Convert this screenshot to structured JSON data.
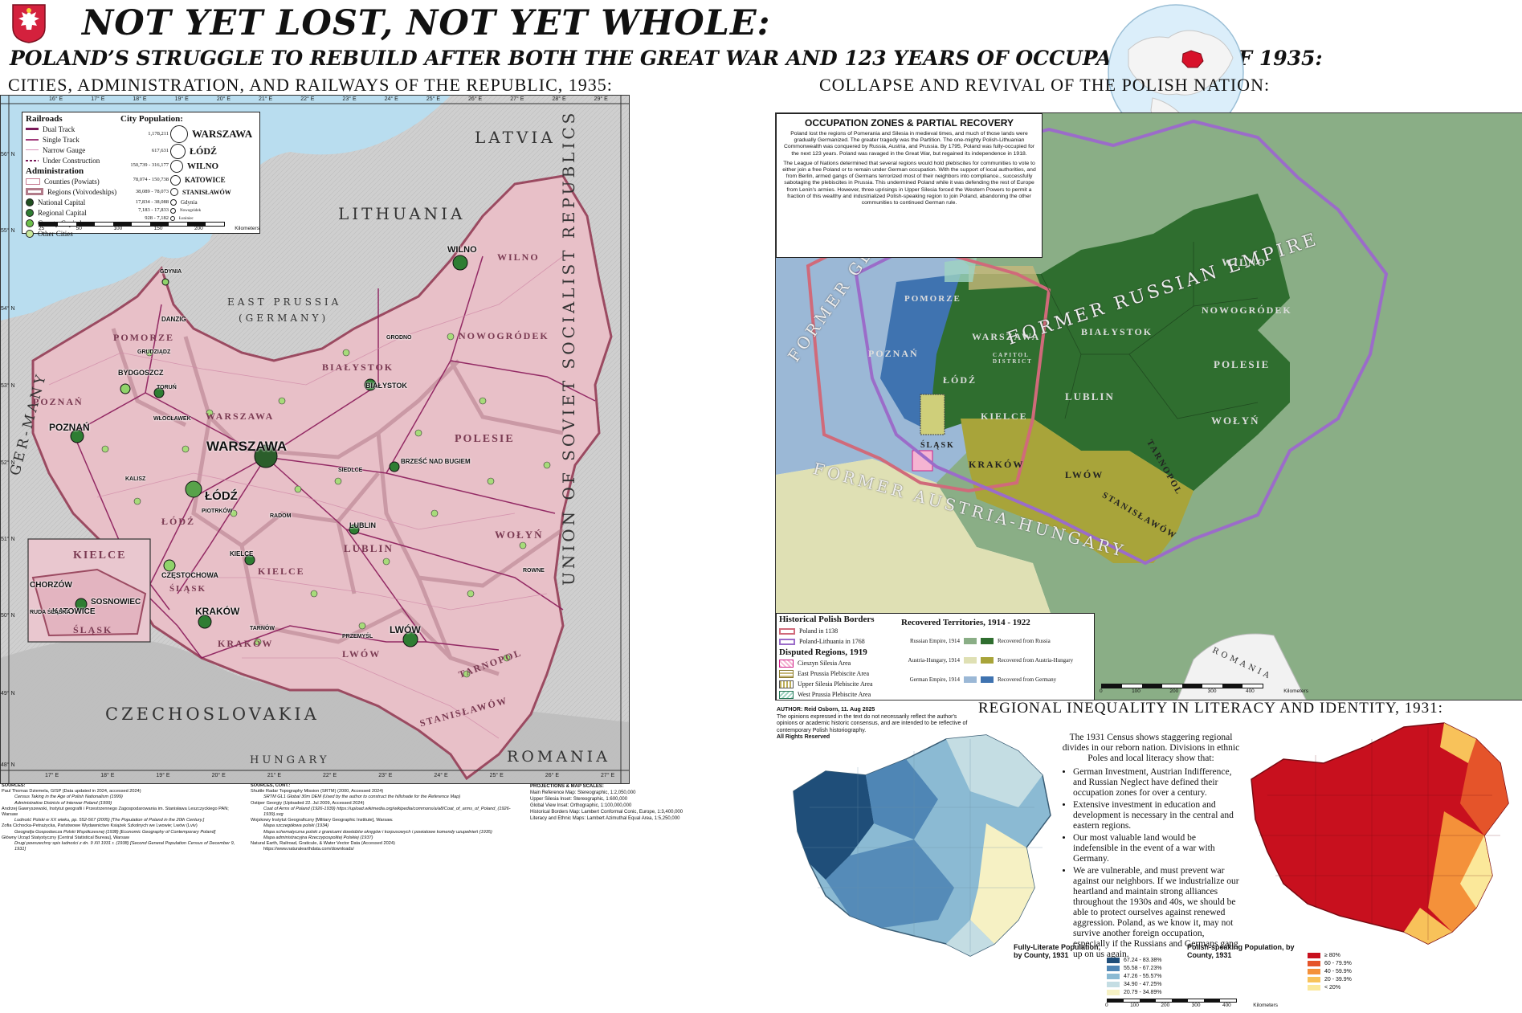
{
  "header": {
    "title": "NOT YET LOST, NOT YET WHOLE:",
    "subtitle": "POLAND’S STRUGGLE TO REBUILD AFTER BOTH THE GREAT WAR AND 123 YEARS OF OCCUPATION, AS OF 1935:",
    "emblem_icon": "white-eagle-emblem"
  },
  "colors": {
    "poland_fill": "#e8c0c8",
    "sea": "#b8dcef",
    "land_grey": "#c8c8c8",
    "railway": "#8a1a5a",
    "germany_blue": "#3f73b0",
    "russia_green": "#2f6e2f",
    "austria_olive": "#a8a43a",
    "pol_lith_purple": "#9b6cc9",
    "border_1138": "#d06a7a"
  },
  "left_map": {
    "title": "CITIES, ADMINISTRATION, AND RAILWAYS OF THE REPUBLIC, 1935:",
    "lon_ticks": [
      "16° E",
      "17° E",
      "18° E",
      "19° E",
      "20° E",
      "21° E",
      "22° E",
      "23° E",
      "24° E",
      "25° E",
      "26° E",
      "27° E",
      "28° E",
      "29° E"
    ],
    "lon_ticks_bottom": [
      "17° E",
      "18° E",
      "19° E",
      "20° E",
      "21° E",
      "22° E",
      "23° E",
      "24° E",
      "25° E",
      "26° E",
      "27° E"
    ],
    "lat_ticks": [
      "56° N",
      "55° N",
      "54° N",
      "53° N",
      "52° N",
      "51° N",
      "50° N",
      "49° N",
      "48° N"
    ],
    "countries": [
      "LATVIA",
      "LITHUANIA",
      "EAST PRUSSIA",
      "(GERMANY)",
      "CZECHOSLOVAKIA",
      "HUNGARY",
      "ROMANIA",
      "UNION OF SOVIET SOCIALIST REPUBLICS",
      "GER-MANY"
    ],
    "regions": [
      "POMORZE",
      "POZNAŃ",
      "WARSZAWA",
      "BIAŁYSTOK",
      "NOWOGRÓDEK",
      "WILNO",
      "POLESIE",
      "ŁÓDŹ",
      "KIELCE",
      "LUBLIN",
      "WOŁYŃ",
      "KRAKÓW",
      "LWÓW",
      "TARNOPOL",
      "STANISŁAWÓW",
      "ŚLĄSK"
    ],
    "cities": [
      "WARSZAWA",
      "ŁÓDŹ",
      "WILNO",
      "LWÓW",
      "KRAKÓW",
      "POZNAŃ",
      "KATOWICE",
      "BYDGOSZCZ",
      "BIAŁYSTOK",
      "BRZEŚĆ NAD BUGIEM",
      "LUBLIN",
      "KIELCE",
      "CZĘSTOCHOWA",
      "RADOM",
      "GDYNIA",
      "DANZIG",
      "TORUŃ",
      "GRUDZIĄDZ",
      "PIOTRKÓW",
      "KALISZ",
      "SOSNOWIEC",
      "CHORZÓW",
      "RUDA ŚLĄSKA",
      "GRODNO",
      "ROWNE",
      "PRZEMYŚL",
      "TARNÓW",
      "WŁOCŁAWEK",
      "SIEDLCE"
    ],
    "inset_labels": [
      "KIELCE",
      "CHORZÓW",
      "SOSNOWIEC",
      "KATOWICE",
      "RUDA ŚLĄSKA",
      "ŚLĄSK"
    ],
    "legend": {
      "railroads_title": "Railroads",
      "railroads": [
        "Dual Track",
        "Single Track",
        "Narrow Gauge",
        "Under Construction"
      ],
      "admin_title": "Administration",
      "admin": [
        "Counties (Powiats)",
        "Regions (Voivodeships)",
        "National Capital",
        "Regional Capital",
        "County Capital",
        "Other Cities"
      ],
      "pop_title": "City Population:",
      "pop_ranges": [
        "1,178,211",
        "617,631",
        "150,739 - 316,177",
        "78,074 - 150,738",
        "38,089 - 78,073",
        "17,834 - 38,088",
        "7,183 - 17,833",
        "928 - 7,182"
      ],
      "pop_cities": [
        "WARSZAWA",
        "ŁÓDŹ",
        "WILNO",
        "KATOWICE",
        "STANISŁAWÓW",
        "Gdynia",
        "Nowogródek",
        "Łuniniec"
      ],
      "scale": [
        "25",
        "50",
        "100",
        "150",
        "200"
      ],
      "scale_unit": "Kilometers"
    }
  },
  "right_map": {
    "title": "COLLAPSE AND REVIVAL OF THE POLISH NATION:",
    "box_title": "OCCUPATION ZONES & PARTIAL RECOVERY",
    "box_para1": "Poland lost the regions of Pomerania and Silesia in medieval times, and much of those lands were gradually Germanized. The greater tragedy was the Partition. The one-mighty Polish-Lithuanian Commonwealth was conquered by Russia, Austria, and Prussia. By 1795, Poland was fully-occupied for the next 123 years. Poland was ravaged in the Great War, but regained its independence in 1918.",
    "box_para2": "The League of Nations determined that several regions would hold plebiscites for communities to vote to either join a free Poland or to remain under German occupation. With the support of local authorities, and from Berlin, armed gangs of Germans terrorized most of their neighbors into compliance., successfully sabotaging the plebiscites in Prussia. This undermined Poland while it was defending the rest of Europe from Lenin's armies. However, three uprisings in Upper Silesia forced the Western Powers to permit a fraction of this wealthy and industrialized Polish-speaking region to join Poland, abandoning the other communities to continued German rule.",
    "empire_labels": [
      "FORMER GERMAN EMPIRE",
      "FORMER RUSSIAN EMPIRE",
      "FORMER AUSTRIA-HUNGARY",
      "ROMANIA"
    ],
    "regions": [
      "WILNO",
      "NOWOGRÓDEK",
      "BIAŁYSTOK",
      "POMORZE",
      "POZNAŃ",
      "WARSZAWA",
      "CAPITOL DISTRICT",
      "ŁÓDŹ",
      "POLESIE",
      "LUBLIN",
      "KIELCE",
      "WOŁYŃ",
      "ŚLĄSK",
      "KRAKÓW",
      "LWÓW",
      "TARNOPOL",
      "STANISŁAWÓW"
    ],
    "legend": {
      "borders_title": "Historical Polish Borders",
      "borders": [
        "Poland in 1138",
        "Poland-Lithuania in 1768"
      ],
      "disputed_title": "Disputed Regions, 1919",
      "disputed": [
        "Cieszyn Silesia Area",
        "East Prussia Plebiscite Area",
        "Upper Silesia Plebiscite Area",
        "West Prussia Plebiscite Area"
      ],
      "recovered_title": "Recovered Territories, 1914 - 1922",
      "recovered": [
        {
          "source": "Russian Empire, 1914",
          "label": "Recovered from Russia"
        },
        {
          "source": "Austria-Hungary, 1914",
          "label": "Recovered from Austria-Hungary"
        },
        {
          "source": "German Empire, 1914",
          "label": "Recovered from Germany"
        }
      ],
      "scale": [
        "0",
        "100",
        "200",
        "300",
        "400"
      ],
      "scale_unit": "Kilometers"
    }
  },
  "bottom": {
    "title": "REGIONAL INEQUALITY IN LITERACY AND IDENTITY, 1931:",
    "author": "AUTHOR: Reid Osborn, 11. Aug 2025",
    "disclaimer": "The opinions expressed in the text do not necessarily reflect the author's opinions or academic historic consensus, and are intended to be reflective of contemporary Polish historiography.",
    "rights": "All Rights Reserved",
    "intro": "The 1931 Census shows staggering regional divides in our reborn nation. Divisions in ethnic Poles and local literacy show that:",
    "bullets": [
      "German Investment, Austrian Indifference, and Russian Neglect have defined their occupation zones for over a century.",
      "Extensive investment in education and development is necessary in the central and eastern regions.",
      "Our most valuable land would be indefensible in the event of a war with Germany.",
      "We are vulnerable, and must prevent war against our neighbors. If we industrialize our heartland and maintain strong alliances throughout the 1930s and 40s, we should be able to protect ourselves against renewed aggression. Poland, as we know it, may not survive another foreign occupation, especially if the Russians and Germans gang up on us again."
    ],
    "literacy_legend": {
      "title": "Fully-Literate Population, by County, 1931",
      "bins": [
        "67.24 - 83.38%",
        "55.58 - 67.23%",
        "47.26 - 55.57%",
        "34.90 - 47.25%",
        "20.79 - 34.89%"
      ],
      "colors": [
        "#1f4e79",
        "#4f86b5",
        "#8bbad3",
        "#c4dde3",
        "#f6f1c4"
      ]
    },
    "polish_legend": {
      "title": "Polish-speaking Population, by County, 1931",
      "bins": [
        "≥ 80%",
        "60 - 79.9%",
        "40 - 59.9%",
        "20 - 39.9%",
        "< 20%"
      ],
      "colors": [
        "#c8101e",
        "#e5542a",
        "#f4913a",
        "#f8c25a",
        "#fbe89a"
      ]
    },
    "scale": [
      "0",
      "100",
      "200",
      "300",
      "400"
    ],
    "scale_unit": "Kilometers"
  },
  "sources": {
    "col1_title": "SOURCES:",
    "col1": [
      "Paul Thomas Dziemela, GISP (Data updated in 2024, accessed 2024)",
      "Census Taking in the Age of Polish Nationalism (1999)",
      "Administrative Districts of Interwar Poland (1999)",
      "Andrzej Gawryszewski, Instytut geografii i Przestrzennego Zagospodarowania im. Stanisława Leszczyckiego PAN; Warsaw",
      "Ludność Polski w XX wieku, pp. 552-567 (2005) [The Population of Poland in the 20th Century.]",
      "Zofia Cichocka-Petrażycka, Państwowe Wydawnictwo Książek Szkolnych we Lwowie; Lwów (Lviv)",
      "Geografja Gospodarcza Polski Współczesnej (1938) [Economic Geography of Contemporary Poland]",
      "Główny Urząd Statystyczny [Central Statistical Bureau], Warsaw",
      "Drugi powszechny spis ludności z dn. 9 XII 1931 r. (1938) [Second General Population Census of December 9, 1931]"
    ],
    "col2_title": "SOURCES, CONT.:",
    "col2": [
      "Shuttle Radar Topography Mission (SRTM) (2000, Accessed 2024)",
      "SRTM GL1 Global 30m DEM (Used by the author to construct the hillshade for the Reference Map)",
      "Ostiper Georgiy (Uploaded 22. Jul 2009, Accessed 2024)",
      "Coat of Arms of Poland (1926-1939) https://upload.wikimedia.org/wikipedia/commons/a/a8/Coat_of_arms_of_Poland_(1926-1939).svg",
      "Wojskowy Instytut Geograficzny [Military Geographic Institute], Warsaw.",
      "Mapa szczegółowa polski (1934)",
      "Mapa schematyczna polski z granicami dowództw okręgów i korpusowych i powiatowe komendy uzupełnień (1935)",
      "Mapa administracyjna Rzeczypospolitej Polskiej (1937)",
      "Natural Earth, Railroad, Graticule, & Water Vector Data (Accessed 2024)",
      "https://www.naturalearthdata.com/downloads/"
    ],
    "col3_title": "PROJECTIONS & MAP SCALES:",
    "col3": [
      "Main Reference Map: Stereographic, 1:2,050,000",
      "Upper Silesia Inset: Stereographic, 1:600,000",
      "Global View Inset: Orthographic, 1:100,000,000",
      "Historical Borders Map: Lambert Conformal Conic, Europe, 1:3,400,000",
      "Literacy and Ethnic Maps: Lambert Azimuthal Equal Area, 1:5,250,000"
    ]
  }
}
